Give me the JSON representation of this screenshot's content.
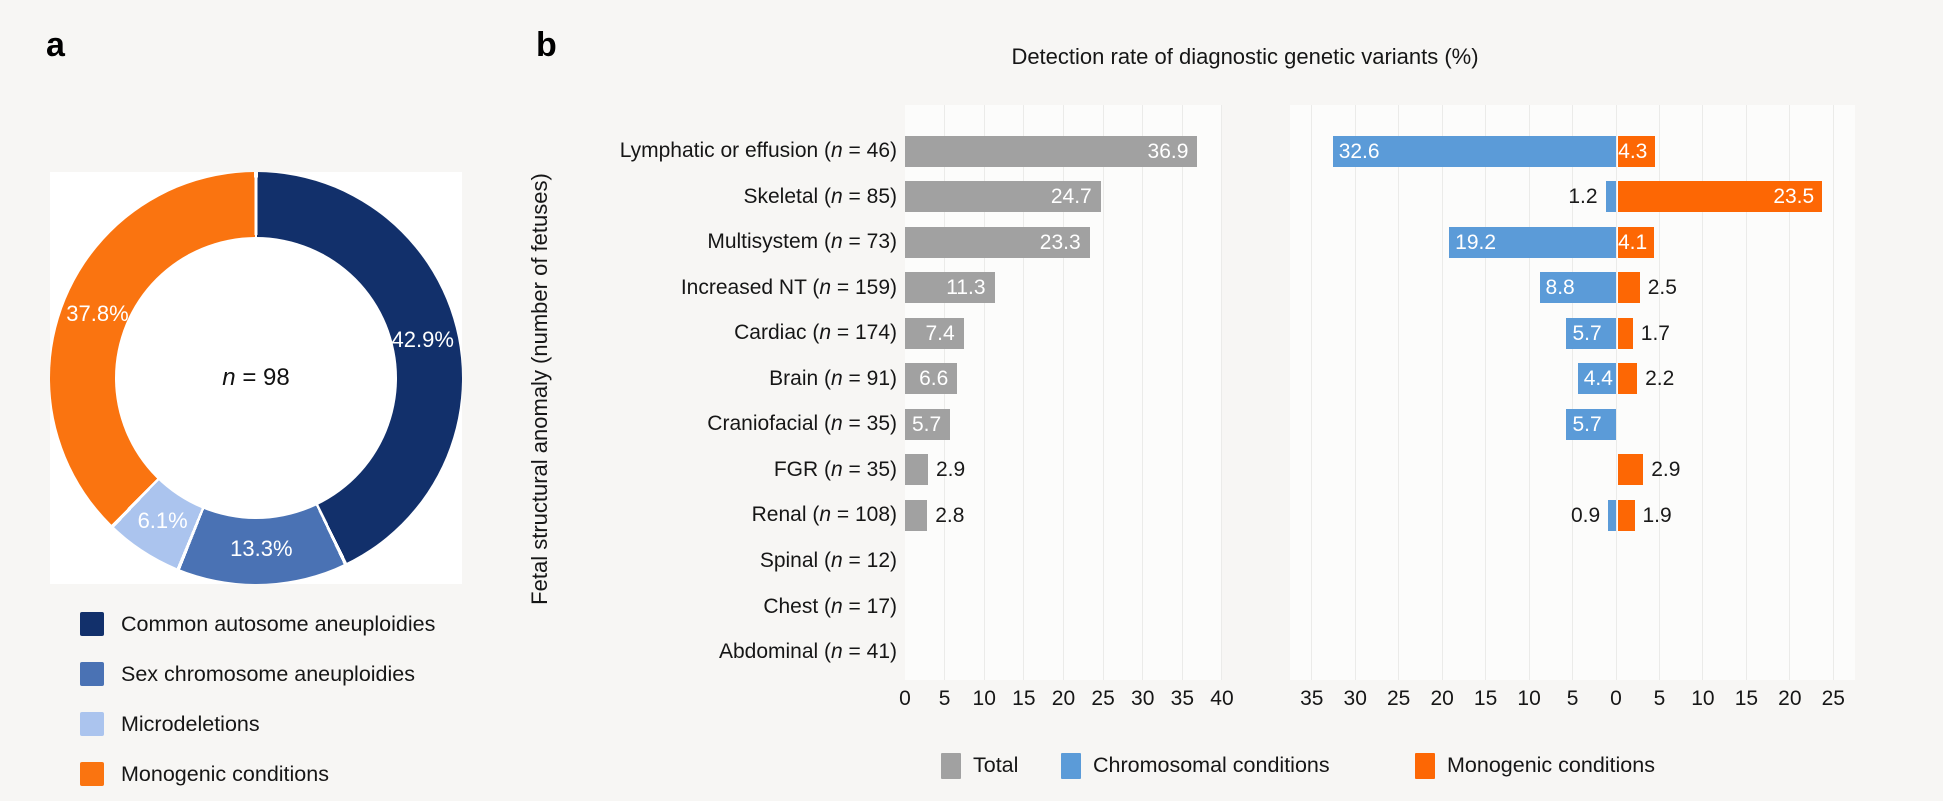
{
  "figure": {
    "background": "#f7f6f4",
    "panel_a_label": "a",
    "panel_b_label": "b"
  },
  "chart_data": [
    {
      "type": "pie",
      "panel": "a",
      "donut": true,
      "start_angle": "top",
      "direction": "clockwise",
      "center_label": "n = 98",
      "legend_position": "below",
      "slices": [
        {
          "label": "Common autosome aneuploidies",
          "value": 42.9,
          "pct_label": "42.9%",
          "color": "#12306b"
        },
        {
          "label": "Sex chromosome aneuploidies",
          "value": 13.3,
          "pct_label": "13.3%",
          "color": "#4a72b4"
        },
        {
          "label": "Microdeletions",
          "value": 6.1,
          "pct_label": "6.1%",
          "color": "#abc4ee"
        },
        {
          "label": "Monogenic conditions",
          "value": 37.8,
          "pct_label": "37.8%",
          "color": "#fa7410"
        }
      ]
    },
    {
      "type": "bar",
      "panel": "b",
      "orientation": "horizontal",
      "title": "Detection rate of diagnostic genetic variants (%)",
      "ylabel": "Fetal structural anomaly (number of fetuses)",
      "grid": true,
      "legend_position": "bottom",
      "categories": [
        {
          "text": "Lymphatic or effusion",
          "n": "46"
        },
        {
          "text": "Skeletal",
          "n": "85"
        },
        {
          "text": "Multisystem",
          "n": "73"
        },
        {
          "text": "Increased NT",
          "n": "159"
        },
        {
          "text": "Cardiac",
          "n": "174"
        },
        {
          "text": "Brain",
          "n": "91"
        },
        {
          "text": "Craniofacial",
          "n": "35"
        },
        {
          "text": "FGR",
          "n": "35"
        },
        {
          "text": "Renal",
          "n": "108"
        },
        {
          "text": "Spinal",
          "n": "12"
        },
        {
          "text": "Chest",
          "n": "17"
        },
        {
          "text": "Abdominal",
          "n": "41"
        }
      ],
      "series": [
        {
          "name": "Total",
          "color": "#a1a1a1",
          "panel_side": "left-total",
          "values": [
            36.9,
            24.7,
            23.3,
            11.3,
            7.4,
            6.6,
            5.7,
            2.9,
            2.8,
            null,
            null,
            null
          ]
        },
        {
          "name": "Chromosomal conditions",
          "color": "#5b9bd8",
          "panel_side": "diverging-left",
          "values": [
            32.6,
            1.2,
            19.2,
            8.8,
            5.7,
            4.4,
            5.7,
            null,
            0.9,
            null,
            null,
            null
          ]
        },
        {
          "name": "Monogenic conditions",
          "color": "#fd6704",
          "panel_side": "diverging-right",
          "values": [
            4.3,
            23.5,
            4.1,
            2.5,
            1.7,
            2.2,
            null,
            2.9,
            1.9,
            null,
            null,
            null
          ]
        }
      ],
      "left_axis_ticks": [
        "0",
        "5",
        "10",
        "15",
        "20",
        "25",
        "30",
        "35",
        "40"
      ],
      "right_axis_ticks": [
        "35",
        "30",
        "25",
        "20",
        "15",
        "10",
        "5",
        "0",
        "5",
        "10",
        "15",
        "20",
        "25"
      ],
      "axis_note": "left panel 0-40 %, right panel diverging from 0 (chromosomal left, monogenic right)"
    }
  ]
}
